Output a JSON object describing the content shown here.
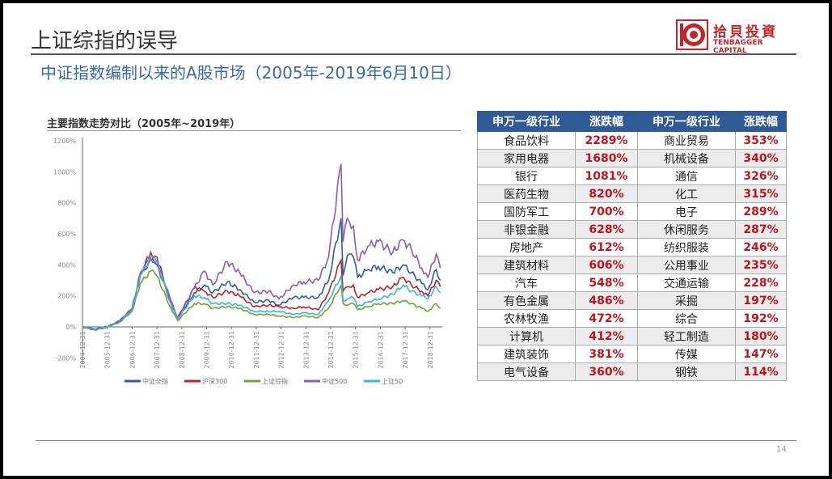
{
  "header": {
    "title": "上证综指的误导",
    "subtitle": "中证指数编制以来的A股市场（2005年-2019年6月10日）",
    "logo": {
      "cn": "拾貝投資",
      "en": "TENBAGGER CAPITAL"
    }
  },
  "chart_data": {
    "type": "line",
    "title": "主要指数走势对比（2005年~2019年）",
    "ylim": [
      -200,
      1200
    ],
    "yticks": [
      "-200%",
      "0%",
      "200%",
      "400%",
      "600%",
      "800%",
      "1000%",
      "1200%"
    ],
    "xticks": [
      "2004-12-31",
      "2005-12-31",
      "2006-12-31",
      "2007-12-31",
      "2008-12-31",
      "2009-12-31",
      "2010-12-31",
      "2011-12-31",
      "2012-12-31",
      "2013-12-31",
      "2014-12-31",
      "2015-12-31",
      "2016-12-31",
      "2017-12-31",
      "2018-12-31"
    ],
    "legend": "bottom",
    "series": [
      {
        "name": "中证全指",
        "color": "#2e5e9e",
        "points": [
          [
            "2005-01",
            0
          ],
          [
            "2005-07",
            -15
          ],
          [
            "2006-01",
            0
          ],
          [
            "2006-07",
            35
          ],
          [
            "2007-01",
            110
          ],
          [
            "2007-05",
            330
          ],
          [
            "2007-10",
            430
          ],
          [
            "2008-01",
            400
          ],
          [
            "2008-07",
            180
          ],
          [
            "2008-11",
            50
          ],
          [
            "2009-07",
            220
          ],
          [
            "2009-12",
            270
          ],
          [
            "2010-04",
            220
          ],
          [
            "2010-11",
            290
          ],
          [
            "2011-05",
            240
          ],
          [
            "2011-12",
            160
          ],
          [
            "2012-07",
            170
          ],
          [
            "2012-12",
            140
          ],
          [
            "2013-07",
            190
          ],
          [
            "2013-12",
            190
          ],
          [
            "2014-07",
            190
          ],
          [
            "2014-12",
            300
          ],
          [
            "2015-06",
            700
          ],
          [
            "2015-07",
            330
          ],
          [
            "2015-09",
            460
          ],
          [
            "2015-12",
            450
          ],
          [
            "2016-02",
            320
          ],
          [
            "2016-07",
            370
          ],
          [
            "2016-12",
            390
          ],
          [
            "2017-07",
            350
          ],
          [
            "2017-12",
            400
          ],
          [
            "2018-04",
            350
          ],
          [
            "2018-09",
            280
          ],
          [
            "2018-12",
            240
          ],
          [
            "2019-04",
            370
          ],
          [
            "2019-06",
            300
          ]
        ]
      },
      {
        "name": "沪深300",
        "color": "#b3282d",
        "points": [
          [
            "2005-01",
            0
          ],
          [
            "2005-07",
            -15
          ],
          [
            "2006-01",
            0
          ],
          [
            "2006-07",
            35
          ],
          [
            "2007-01",
            120
          ],
          [
            "2007-05",
            340
          ],
          [
            "2007-10",
            480
          ],
          [
            "2008-01",
            450
          ],
          [
            "2008-07",
            190
          ],
          [
            "2008-11",
            60
          ],
          [
            "2009-07",
            250
          ],
          [
            "2009-12",
            230
          ],
          [
            "2010-04",
            190
          ],
          [
            "2010-11",
            230
          ],
          [
            "2011-05",
            200
          ],
          [
            "2011-12",
            130
          ],
          [
            "2012-07",
            140
          ],
          [
            "2012-12",
            130
          ],
          [
            "2013-07",
            120
          ],
          [
            "2013-12",
            130
          ],
          [
            "2014-07",
            110
          ],
          [
            "2014-12",
            220
          ],
          [
            "2015-06",
            430
          ],
          [
            "2015-07",
            230
          ],
          [
            "2015-09",
            260
          ],
          [
            "2015-12",
            270
          ],
          [
            "2016-02",
            190
          ],
          [
            "2016-07",
            220
          ],
          [
            "2016-12",
            240
          ],
          [
            "2017-07",
            260
          ],
          [
            "2017-12",
            320
          ],
          [
            "2018-04",
            270
          ],
          [
            "2018-09",
            230
          ],
          [
            "2018-12",
            200
          ],
          [
            "2019-04",
            300
          ],
          [
            "2019-06",
            260
          ]
        ]
      },
      {
        "name": "上证综指",
        "color": "#72a23a",
        "points": [
          [
            "2005-01",
            0
          ],
          [
            "2005-07",
            -15
          ],
          [
            "2006-01",
            0
          ],
          [
            "2006-07",
            30
          ],
          [
            "2007-01",
            100
          ],
          [
            "2007-05",
            280
          ],
          [
            "2007-10",
            360
          ],
          [
            "2008-01",
            330
          ],
          [
            "2008-07",
            140
          ],
          [
            "2008-11",
            40
          ],
          [
            "2009-07",
            150
          ],
          [
            "2009-12",
            150
          ],
          [
            "2010-04",
            120
          ],
          [
            "2010-11",
            130
          ],
          [
            "2011-05",
            120
          ],
          [
            "2011-12",
            80
          ],
          [
            "2012-07",
            80
          ],
          [
            "2012-12",
            70
          ],
          [
            "2013-07",
            60
          ],
          [
            "2013-12",
            70
          ],
          [
            "2014-07",
            60
          ],
          [
            "2014-12",
            120
          ],
          [
            "2015-06",
            270
          ],
          [
            "2015-07",
            150
          ],
          [
            "2015-09",
            140
          ],
          [
            "2015-12",
            150
          ],
          [
            "2016-02",
            110
          ],
          [
            "2016-07",
            130
          ],
          [
            "2016-12",
            150
          ],
          [
            "2017-07",
            150
          ],
          [
            "2017-12",
            170
          ],
          [
            "2018-04",
            150
          ],
          [
            "2018-09",
            120
          ],
          [
            "2018-12",
            100
          ],
          [
            "2019-04",
            150
          ],
          [
            "2019-06",
            120
          ]
        ]
      },
      {
        "name": "中证500",
        "color": "#8a5cb8",
        "points": [
          [
            "2005-01",
            0
          ],
          [
            "2005-07",
            -20
          ],
          [
            "2006-01",
            0
          ],
          [
            "2006-07",
            40
          ],
          [
            "2007-01",
            120
          ],
          [
            "2007-05",
            350
          ],
          [
            "2007-10",
            440
          ],
          [
            "2008-01",
            420
          ],
          [
            "2008-07",
            200
          ],
          [
            "2008-11",
            50
          ],
          [
            "2009-07",
            250
          ],
          [
            "2009-12",
            360
          ],
          [
            "2010-04",
            270
          ],
          [
            "2010-11",
            420
          ],
          [
            "2011-05",
            350
          ],
          [
            "2011-12",
            220
          ],
          [
            "2012-07",
            230
          ],
          [
            "2012-12",
            180
          ],
          [
            "2013-07",
            270
          ],
          [
            "2013-12",
            290
          ],
          [
            "2014-07",
            300
          ],
          [
            "2014-12",
            450
          ],
          [
            "2015-06",
            1050
          ],
          [
            "2015-07",
            550
          ],
          [
            "2015-09",
            700
          ],
          [
            "2015-12",
            650
          ],
          [
            "2016-02",
            430
          ],
          [
            "2016-07",
            520
          ],
          [
            "2016-12",
            550
          ],
          [
            "2017-07",
            480
          ],
          [
            "2017-12",
            560
          ],
          [
            "2018-04",
            500
          ],
          [
            "2018-09",
            380
          ],
          [
            "2018-12",
            320
          ],
          [
            "2019-04",
            470
          ],
          [
            "2019-06",
            380
          ]
        ]
      },
      {
        "name": "上证50",
        "color": "#3fb3d9",
        "points": [
          [
            "2005-01",
            0
          ],
          [
            "2005-07",
            -15
          ],
          [
            "2006-01",
            0
          ],
          [
            "2006-07",
            30
          ],
          [
            "2007-01",
            110
          ],
          [
            "2007-05",
            330
          ],
          [
            "2007-10",
            450
          ],
          [
            "2008-01",
            420
          ],
          [
            "2008-07",
            170
          ],
          [
            "2008-11",
            50
          ],
          [
            "2009-07",
            200
          ],
          [
            "2009-12",
            190
          ],
          [
            "2010-04",
            150
          ],
          [
            "2010-11",
            150
          ],
          [
            "2011-05",
            140
          ],
          [
            "2011-12",
            100
          ],
          [
            "2012-07",
            100
          ],
          [
            "2012-12",
            100
          ],
          [
            "2013-07",
            80
          ],
          [
            "2013-12",
            90
          ],
          [
            "2014-07",
            80
          ],
          [
            "2014-12",
            170
          ],
          [
            "2015-06",
            330
          ],
          [
            "2015-07",
            170
          ],
          [
            "2015-09",
            180
          ],
          [
            "2015-12",
            190
          ],
          [
            "2016-02",
            130
          ],
          [
            "2016-07",
            160
          ],
          [
            "2016-12",
            180
          ],
          [
            "2017-07",
            210
          ],
          [
            "2017-12",
            270
          ],
          [
            "2018-04",
            230
          ],
          [
            "2018-09",
            200
          ],
          [
            "2018-12",
            180
          ],
          [
            "2019-04",
            260
          ],
          [
            "2019-06",
            220
          ]
        ]
      }
    ]
  },
  "table": {
    "headers": [
      "申万一级行业",
      "涨跌幅",
      "申万一级行业",
      "涨跌幅"
    ],
    "rows": [
      [
        "食品饮料",
        "2289%",
        "商业贸易",
        "353%"
      ],
      [
        "家用电器",
        "1680%",
        "机械设备",
        "340%"
      ],
      [
        "银行",
        "1081%",
        "通信",
        "326%"
      ],
      [
        "医药生物",
        "820%",
        "化工",
        "315%"
      ],
      [
        "国防军工",
        "700%",
        "电子",
        "289%"
      ],
      [
        "非银金融",
        "628%",
        "休闲服务",
        "287%"
      ],
      [
        "房地产",
        "612%",
        "纺织服装",
        "246%"
      ],
      [
        "建筑材料",
        "606%",
        "公用事业",
        "235%"
      ],
      [
        "汽车",
        "548%",
        "交通运输",
        "228%"
      ],
      [
        "有色金属",
        "486%",
        "采掘",
        "197%"
      ],
      [
        "农林牧渔",
        "472%",
        "综合",
        "192%"
      ],
      [
        "计算机",
        "412%",
        "轻工制造",
        "180%"
      ],
      [
        "建筑装饰",
        "381%",
        "传媒",
        "147%"
      ],
      [
        "电气设备",
        "360%",
        "钢铁",
        "114%"
      ]
    ]
  },
  "footer": {
    "page": "14"
  }
}
